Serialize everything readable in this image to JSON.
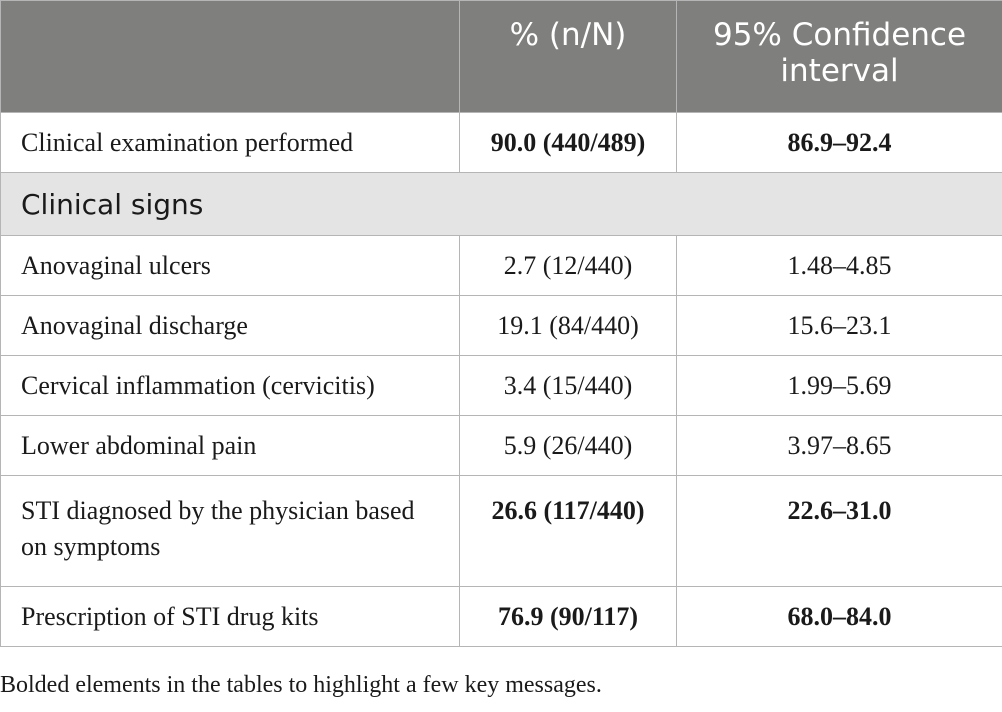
{
  "table": {
    "headers": [
      "",
      "% (n/N)",
      "95% Confidence interval"
    ],
    "rows": [
      {
        "label": "Clinical examination performed",
        "pct": "90.0 (440/489)",
        "ci": "86.9–92.4",
        "bold": true
      },
      {
        "section": "Clinical signs"
      },
      {
        "label": "Anovaginal ulcers",
        "pct": "2.7 (12/440)",
        "ci": "1.48–4.85",
        "bold": false
      },
      {
        "label": "Anovaginal discharge",
        "pct": "19.1 (84/440)",
        "ci": "15.6–23.1",
        "bold": false
      },
      {
        "label": "Cervical inflammation (cervicitis)",
        "pct": "3.4 (15/440)",
        "ci": "1.99–5.69",
        "bold": false
      },
      {
        "label": "Lower abdominal pain",
        "pct": "5.9 (26/440)",
        "ci": "3.97–8.65",
        "bold": false
      },
      {
        "label": "STI diagnosed by the physician based on symptoms",
        "pct": "26.6 (117/440)",
        "ci": "22.6–31.0",
        "bold": true
      },
      {
        "label": "Prescription of STI drug kits",
        "pct": "76.9 (90/117)",
        "ci": "68.0–84.0",
        "bold": true
      }
    ]
  },
  "footnote": "Bolded elements in the tables to highlight a few key messages."
}
